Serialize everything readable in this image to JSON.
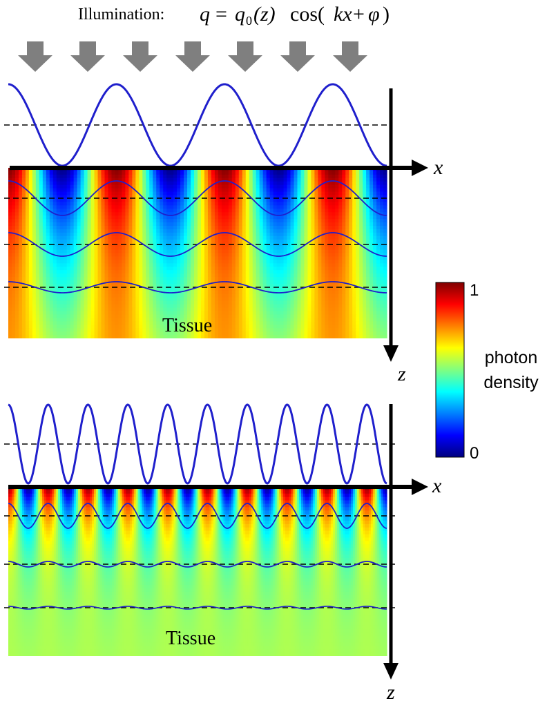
{
  "header": {
    "label": "Illumination:",
    "equation": {
      "lhs": "q",
      "eq": "=",
      "q0_base": "q",
      "q0_sub": "0",
      "z_arg": "(z)",
      "cos": "cos(",
      "kx": "kx",
      "plus": "+",
      "phi": "φ",
      "close": ")"
    },
    "arrow_count": 7,
    "arrow_color": "#7f7f7f"
  },
  "panels": [
    {
      "illumination_periods": 3.5,
      "tissue_label": "Tissue",
      "x_axis_label": "x",
      "z_axis_label": "z"
    },
    {
      "illumination_periods": 9.5,
      "tissue_label": "Tissue",
      "x_axis_label": "x",
      "z_axis_label": "z"
    }
  ],
  "colorbar": {
    "max_label": "1",
    "min_label": "0",
    "title_line1": "photon",
    "title_line2": "density",
    "colormap": [
      "#00007f",
      "#0000ff",
      "#0080ff",
      "#00ffff",
      "#80ff80",
      "#ffff00",
      "#ff8000",
      "#ff0000",
      "#7f0000"
    ]
  },
  "colors": {
    "wave": "#1f1fcc",
    "axis": "#000000",
    "dashed": "#000000"
  }
}
